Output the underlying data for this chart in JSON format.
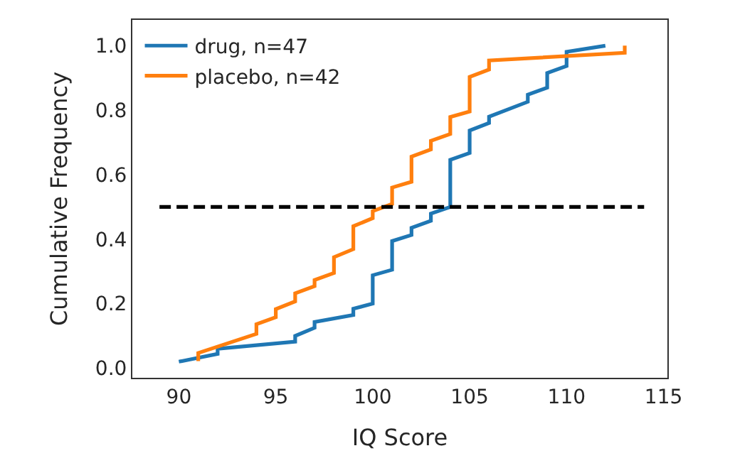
{
  "chart_data": {
    "type": "line",
    "xlabel": "IQ Score",
    "ylabel": "Cumulative Frequency",
    "xlim": [
      87.6,
      115.2
    ],
    "ylim": [
      -0.03,
      1.08
    ],
    "xticks": [
      90,
      95,
      100,
      105,
      110,
      115
    ],
    "yticks": [
      {
        "value": 0,
        "label": "0.0"
      },
      0.2,
      0.4,
      0.6,
      0.8,
      {
        "value": 1,
        "label": "1.0"
      }
    ],
    "legend": "top left",
    "marker": "none",
    "line_style": "solid",
    "series": [
      {
        "name": "drug, n=47",
        "color": "#1f77b4",
        "x": [
          90,
          92,
          92,
          96,
          96,
          97,
          97,
          99,
          99,
          100,
          100,
          101,
          101,
          102,
          102,
          103,
          103,
          104,
          104,
          105,
          105,
          106,
          106,
          108,
          108,
          109,
          109,
          110,
          110,
          112
        ],
        "values": [
          0.02,
          0.044,
          0.06,
          0.082,
          0.1,
          0.125,
          0.143,
          0.165,
          0.184,
          0.2,
          0.288,
          0.305,
          0.394,
          0.413,
          0.435,
          0.457,
          0.479,
          0.5,
          0.646,
          0.667,
          0.737,
          0.76,
          0.78,
          0.826,
          0.848,
          0.87,
          0.915,
          0.937,
          0.981,
          1.0
        ]
      },
      {
        "name": "placebo, n=42",
        "color": "#ff7f0e",
        "x": [
          91,
          91,
          94,
          94,
          95,
          95,
          96,
          96,
          97,
          97,
          98,
          98,
          99,
          99,
          100,
          100,
          101,
          101,
          102,
          102,
          103,
          103,
          104,
          104,
          105,
          105,
          106,
          106,
          113,
          113
        ],
        "values": [
          0.022,
          0.047,
          0.106,
          0.136,
          0.158,
          0.183,
          0.207,
          0.232,
          0.254,
          0.273,
          0.295,
          0.344,
          0.369,
          0.44,
          0.465,
          0.487,
          0.509,
          0.56,
          0.578,
          0.656,
          0.678,
          0.705,
          0.726,
          0.779,
          0.796,
          0.903,
          0.926,
          0.954,
          0.978,
          1.0
        ]
      },
      {
        "color": "#000000",
        "line_style": "dashed",
        "x": [
          89,
          114
        ],
        "values": [
          0.5,
          0.5
        ]
      }
    ]
  }
}
